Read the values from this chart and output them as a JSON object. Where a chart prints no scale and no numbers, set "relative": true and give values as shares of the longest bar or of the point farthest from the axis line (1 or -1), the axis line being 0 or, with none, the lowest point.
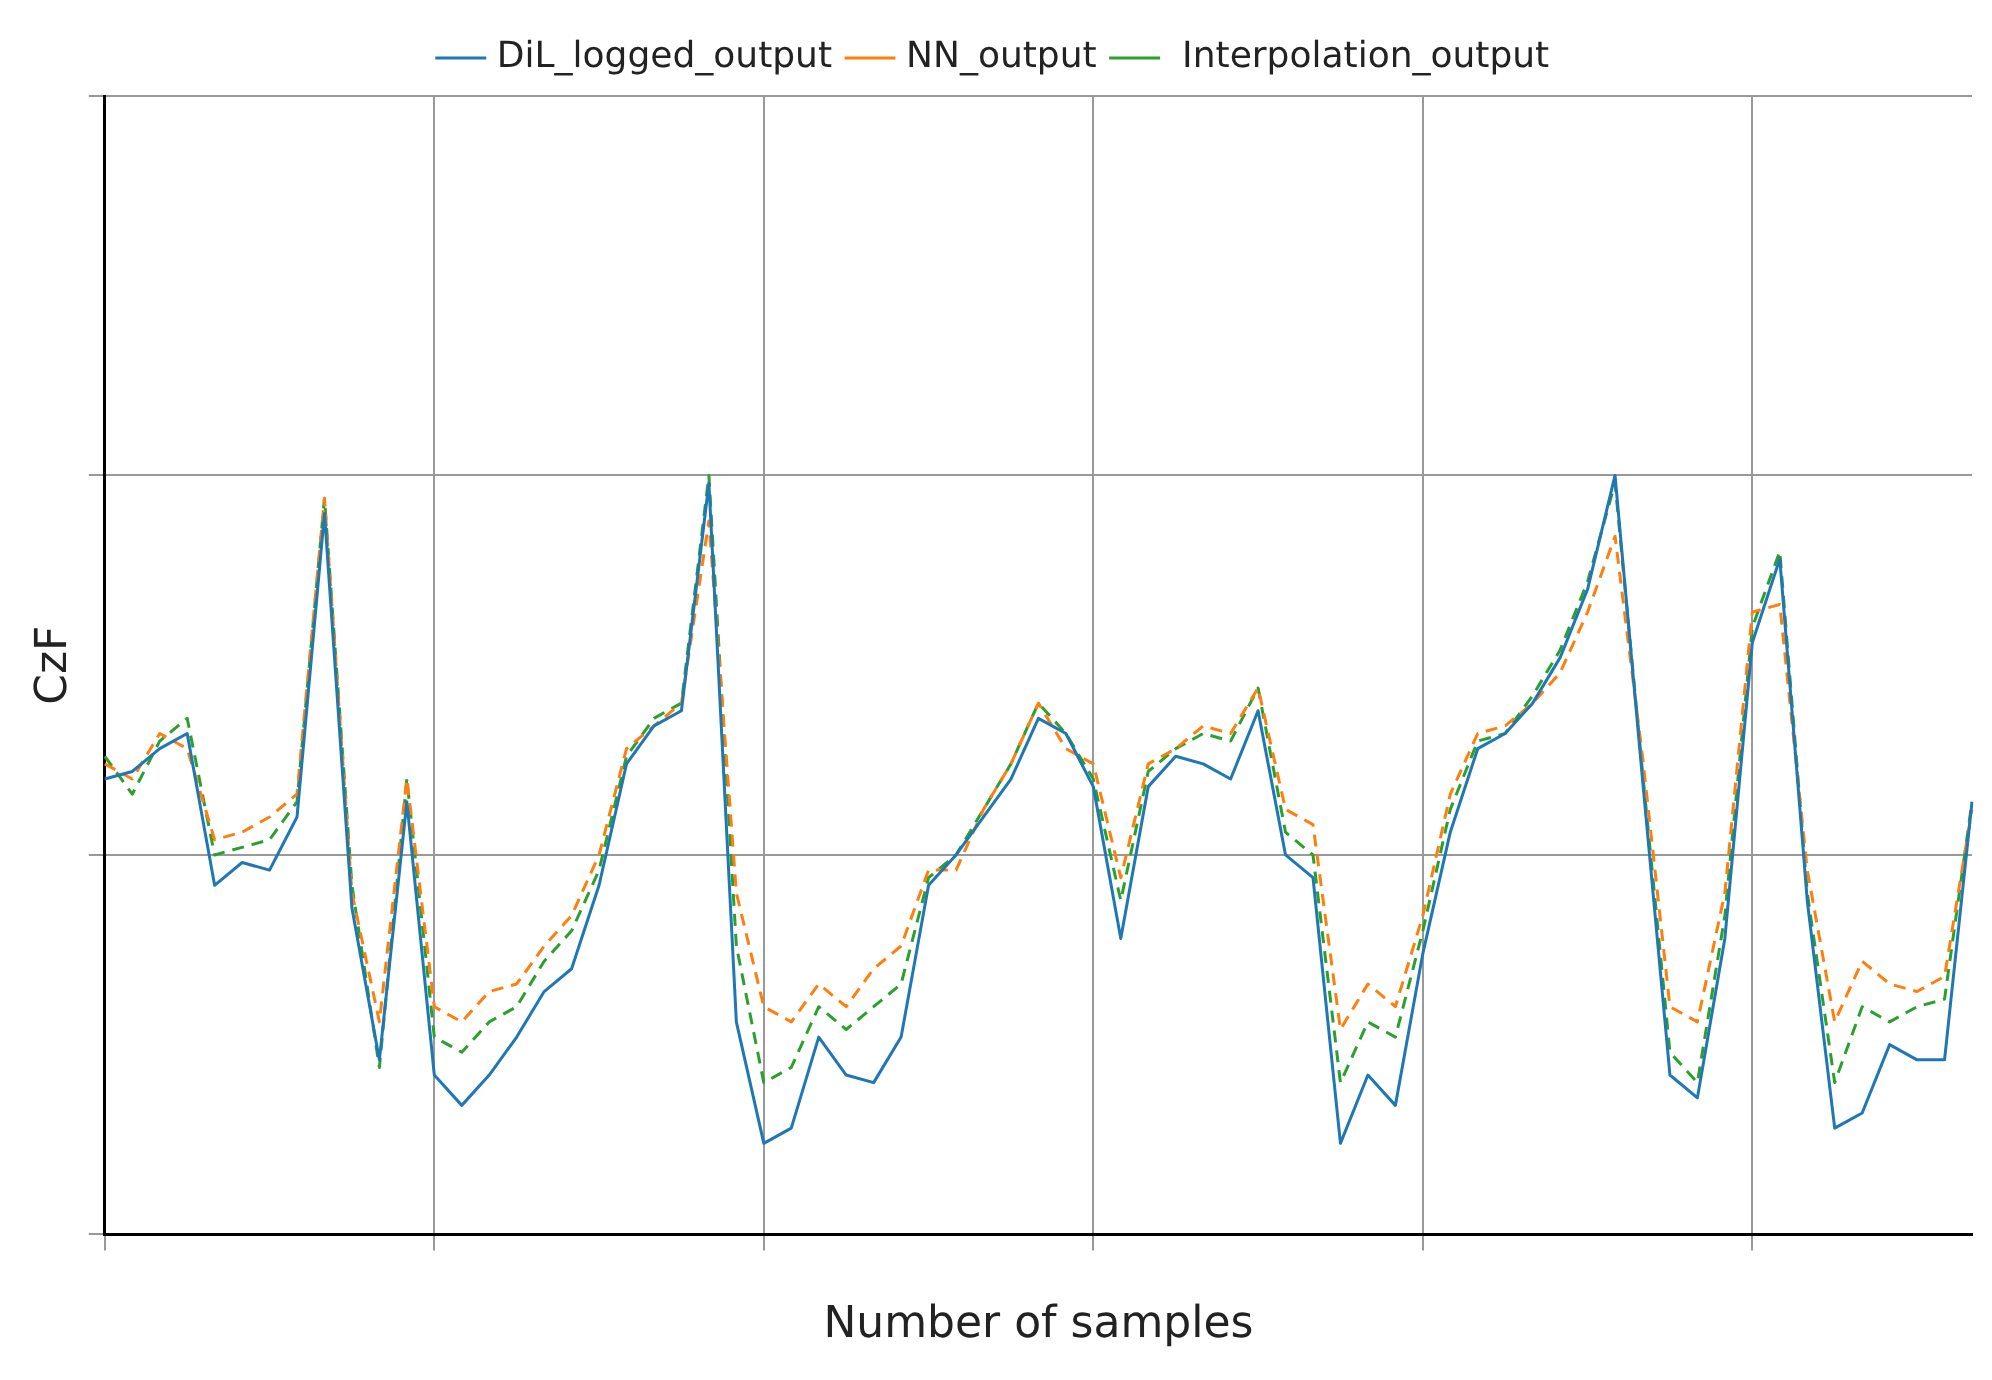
{
  "chart_data": {
    "type": "line",
    "xlabel": "Number of samples",
    "ylabel": "CzF",
    "relative": true,
    "grid": true,
    "legend": "top",
    "marker": "none",
    "categories": [
      null,
      null,
      null,
      null,
      null,
      null,
      null,
      null,
      null,
      null,
      null,
      null,
      null,
      null,
      null,
      null,
      null,
      null,
      null,
      null,
      null,
      null,
      null,
      null,
      null,
      null,
      null,
      null,
      null,
      null,
      null,
      null,
      null,
      null,
      null,
      null,
      null,
      null,
      null,
      null,
      null,
      null,
      null,
      null,
      null,
      null,
      null,
      null,
      null,
      null,
      null,
      null,
      null,
      null,
      null,
      null,
      null,
      null,
      null,
      null,
      null,
      null,
      null,
      null,
      null,
      null,
      null,
      null,
      null
    ],
    "series": [
      {
        "name": "DiL_logged_output",
        "color": "#1f77b4",
        "line_style": "solid",
        "values": [
          0.6,
          0.61,
          0.64,
          0.66,
          0.46,
          0.49,
          0.48,
          0.55,
          0.95,
          0.43,
          0.23,
          0.57,
          0.21,
          0.17,
          0.21,
          0.26,
          0.32,
          0.35,
          0.46,
          0.62,
          0.67,
          0.69,
          0.99,
          0.28,
          0.12,
          0.14,
          0.26,
          0.21,
          0.2,
          0.26,
          0.46,
          0.5,
          0.55,
          0.6,
          0.68,
          0.66,
          0.59,
          0.39,
          0.59,
          0.63,
          0.62,
          0.6,
          0.69,
          0.5,
          0.47,
          0.12,
          0.21,
          0.17,
          0.37,
          0.53,
          0.64,
          0.66,
          0.7,
          0.76,
          0.85,
          1,
          0.6,
          0.21,
          0.18,
          0.39,
          0.78,
          0.89,
          0.44,
          0.14,
          0.16,
          0.25,
          0.23,
          0.23,
          0.57
        ]
      },
      {
        "name": "NN_output",
        "color": "#ff7f0e",
        "line_style": "dashed",
        "values": [
          0.62,
          0.6,
          0.66,
          0.64,
          0.52,
          0.53,
          0.55,
          0.58,
          0.97,
          0.45,
          0.28,
          0.6,
          0.3,
          0.28,
          0.32,
          0.33,
          0.38,
          0.42,
          0.5,
          0.64,
          0.67,
          0.7,
          0.94,
          0.45,
          0.3,
          0.28,
          0.33,
          0.3,
          0.35,
          0.38,
          0.48,
          0.48,
          0.56,
          0.62,
          0.7,
          0.64,
          0.62,
          0.47,
          0.62,
          0.64,
          0.67,
          0.66,
          0.72,
          0.56,
          0.54,
          0.27,
          0.33,
          0.3,
          0.42,
          0.58,
          0.66,
          0.67,
          0.7,
          0.74,
          0.82,
          0.92,
          0.63,
          0.3,
          0.28,
          0.45,
          0.82,
          0.83,
          0.48,
          0.28,
          0.36,
          0.33,
          0.32,
          0.34,
          0.56
        ]
      },
      {
        "name": " Interpolation_output",
        "color": "#2ca02c",
        "line_style": "dashed",
        "values": [
          0.63,
          0.58,
          0.65,
          0.68,
          0.5,
          0.51,
          0.52,
          0.57,
          0.97,
          0.46,
          0.22,
          0.6,
          0.26,
          0.24,
          0.28,
          0.3,
          0.36,
          0.4,
          0.48,
          0.63,
          0.68,
          0.7,
          1.0,
          0.38,
          0.2,
          0.22,
          0.3,
          0.27,
          0.3,
          0.33,
          0.47,
          0.5,
          0.56,
          0.62,
          0.7,
          0.66,
          0.6,
          0.44,
          0.61,
          0.64,
          0.66,
          0.65,
          0.72,
          0.53,
          0.5,
          0.2,
          0.28,
          0.26,
          0.4,
          0.56,
          0.65,
          0.66,
          0.71,
          0.77,
          0.86,
          0.99,
          0.61,
          0.24,
          0.2,
          0.42,
          0.8,
          0.9,
          0.45,
          0.2,
          0.3,
          0.28,
          0.3,
          0.31,
          0.57
        ]
      }
    ]
  }
}
